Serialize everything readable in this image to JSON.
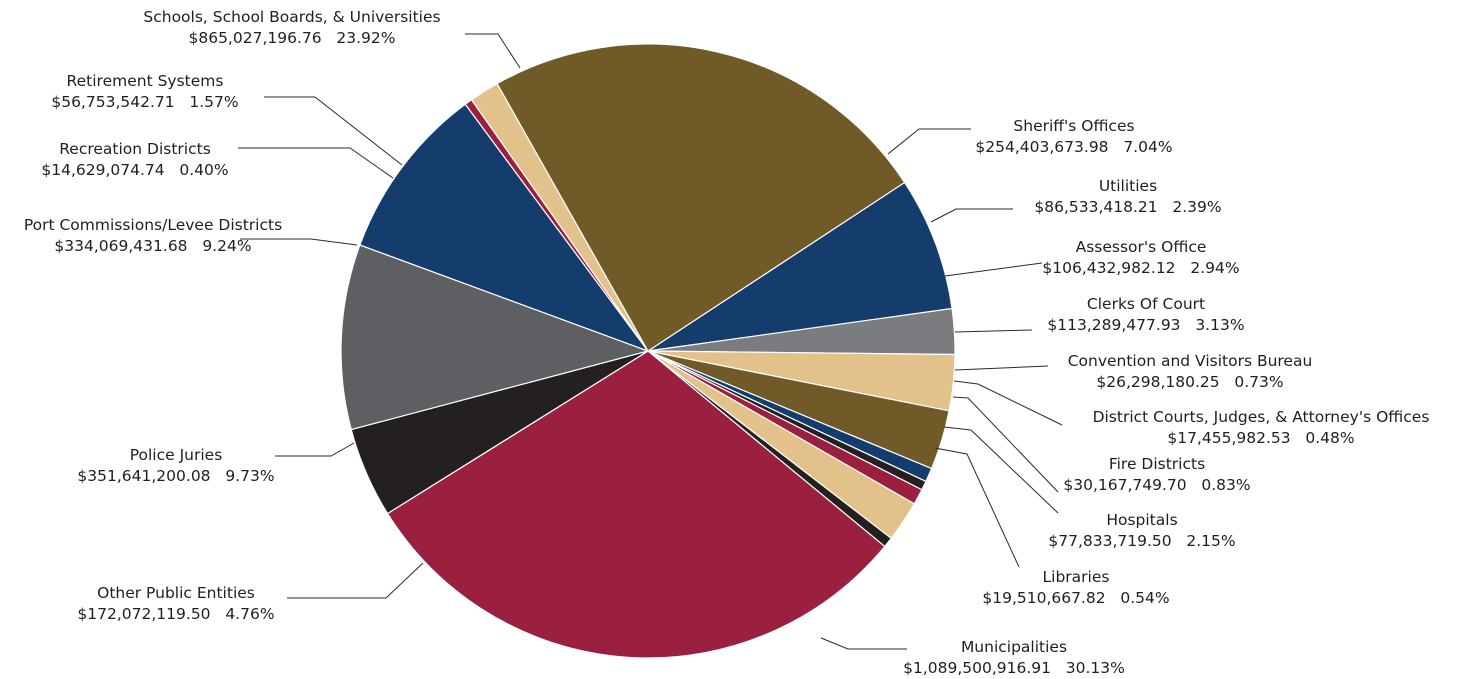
{
  "chart_data": {
    "type": "pie",
    "title": "",
    "start_category": "Schools, School Boards, & Universities",
    "direction": "clockwise",
    "slices": [
      {
        "label": "Sheriff's Offices",
        "amount": "$254,403,673.98",
        "percent": "7.04%",
        "value": 7.04,
        "color": "#143d6e"
      },
      {
        "label": "Utilities",
        "amount": "$86,533,418.21",
        "percent": "2.39%",
        "value": 2.39,
        "color": "#7b7c80"
      },
      {
        "label": "Assessor's Office",
        "amount": "$106,432,982.12",
        "percent": "2.94%",
        "value": 2.94,
        "color": "#e2c18b"
      },
      {
        "label": "Clerks Of Court",
        "amount": "$113,289,477.93",
        "percent": "3.13%",
        "value": 3.13,
        "color": "#6f5a28"
      },
      {
        "label": "Convention and Visitors Bureau",
        "amount": "$26,298,180.25",
        "percent": "0.73%",
        "value": 0.73,
        "color": "#143d6e"
      },
      {
        "label": "District Courts, Judges, & Attorney's Offices",
        "amount": "$17,455,982.53",
        "percent": "0.48%",
        "value": 0.48,
        "color": "#242021"
      },
      {
        "label": "Fire Districts",
        "amount": "$30,167,749.70",
        "percent": "0.83%",
        "value": 0.83,
        "color": "#9b1f3e"
      },
      {
        "label": "Hospitals",
        "amount": "$77,833,719.50",
        "percent": "2.15%",
        "value": 2.15,
        "color": "#e2c18b"
      },
      {
        "label": "Libraries",
        "amount": "$19,510,667.82",
        "percent": "0.54%",
        "value": 0.54,
        "color": "#242021"
      },
      {
        "label": "Municipalities",
        "amount": "$1,089,500,916.91",
        "percent": "30.13%",
        "value": 30.13,
        "color": "#9b1f3e"
      },
      {
        "label": "Other Public Entities",
        "amount": "$172,072,119.50",
        "percent": "4.76%",
        "value": 4.76,
        "color": "#242021"
      },
      {
        "label": "Police Juries",
        "amount": "$351,641,200.08",
        "percent": "9.73%",
        "value": 9.73,
        "color": "#5e5f63"
      },
      {
        "label": "Port Commissions/Levee Districts",
        "amount": "$334,069,431.68",
        "percent": "9.24%",
        "value": 9.24,
        "color": "#143d6e"
      },
      {
        "label": "Recreation Districts",
        "amount": "$14,629,074.74",
        "percent": "0.40%",
        "value": 0.4,
        "color": "#9b1f3e"
      },
      {
        "label": "Retirement Systems",
        "amount": "$56,753,542.71",
        "percent": "1.57%",
        "value": 1.57,
        "color": "#e2c18b"
      },
      {
        "label": "Schools, School Boards, & Universities",
        "amount": "$865,027,196.76",
        "percent": "23.92%",
        "value": 23.92,
        "color": "#6f5a28"
      }
    ]
  }
}
